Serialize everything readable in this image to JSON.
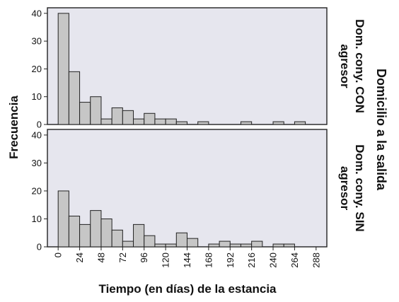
{
  "chart_data": {
    "type": "bar",
    "subtype": "histogram-faceted",
    "xlabel": "Tiempo (en días) de la estancia",
    "ylabel": "Frecuencia",
    "facet_variable": "Domicilio a la salida",
    "bin_width": 12,
    "x_ticks": [
      0,
      24,
      48,
      72,
      96,
      120,
      144,
      168,
      192,
      216,
      240,
      264,
      288
    ],
    "xlim": [
      -12,
      300
    ],
    "ylim": [
      0,
      42
    ],
    "y_ticks": [
      0,
      10,
      20,
      30,
      40
    ],
    "grid": false,
    "colors": {
      "bar_fill": "#c6c6c6",
      "bar_stroke": "#222222",
      "panel_bg": "#e6e6ee",
      "frame": "#222222"
    },
    "panels": [
      {
        "label_lines": [
          "Dom. cony. CON",
          "agresor"
        ],
        "bins": [
          {
            "x_start": 0,
            "value": 40
          },
          {
            "x_start": 12,
            "value": 19
          },
          {
            "x_start": 24,
            "value": 8
          },
          {
            "x_start": 36,
            "value": 10
          },
          {
            "x_start": 48,
            "value": 2
          },
          {
            "x_start": 60,
            "value": 6
          },
          {
            "x_start": 72,
            "value": 5
          },
          {
            "x_start": 84,
            "value": 2
          },
          {
            "x_start": 96,
            "value": 4
          },
          {
            "x_start": 108,
            "value": 2
          },
          {
            "x_start": 120,
            "value": 2
          },
          {
            "x_start": 132,
            "value": 1
          },
          {
            "x_start": 156,
            "value": 1
          },
          {
            "x_start": 204,
            "value": 1
          },
          {
            "x_start": 240,
            "value": 1
          },
          {
            "x_start": 264,
            "value": 1
          }
        ]
      },
      {
        "label_lines": [
          "Dom. cony. SIN",
          "agresor"
        ],
        "bins": [
          {
            "x_start": 0,
            "value": 20
          },
          {
            "x_start": 12,
            "value": 11
          },
          {
            "x_start": 24,
            "value": 8
          },
          {
            "x_start": 36,
            "value": 13
          },
          {
            "x_start": 48,
            "value": 10
          },
          {
            "x_start": 60,
            "value": 6
          },
          {
            "x_start": 72,
            "value": 2
          },
          {
            "x_start": 84,
            "value": 8
          },
          {
            "x_start": 96,
            "value": 4
          },
          {
            "x_start": 108,
            "value": 1
          },
          {
            "x_start": 120,
            "value": 1
          },
          {
            "x_start": 132,
            "value": 5
          },
          {
            "x_start": 144,
            "value": 3
          },
          {
            "x_start": 168,
            "value": 1
          },
          {
            "x_start": 180,
            "value": 2
          },
          {
            "x_start": 192,
            "value": 1
          },
          {
            "x_start": 204,
            "value": 1
          },
          {
            "x_start": 216,
            "value": 2
          },
          {
            "x_start": 240,
            "value": 1
          },
          {
            "x_start": 252,
            "value": 1
          }
        ]
      }
    ]
  }
}
